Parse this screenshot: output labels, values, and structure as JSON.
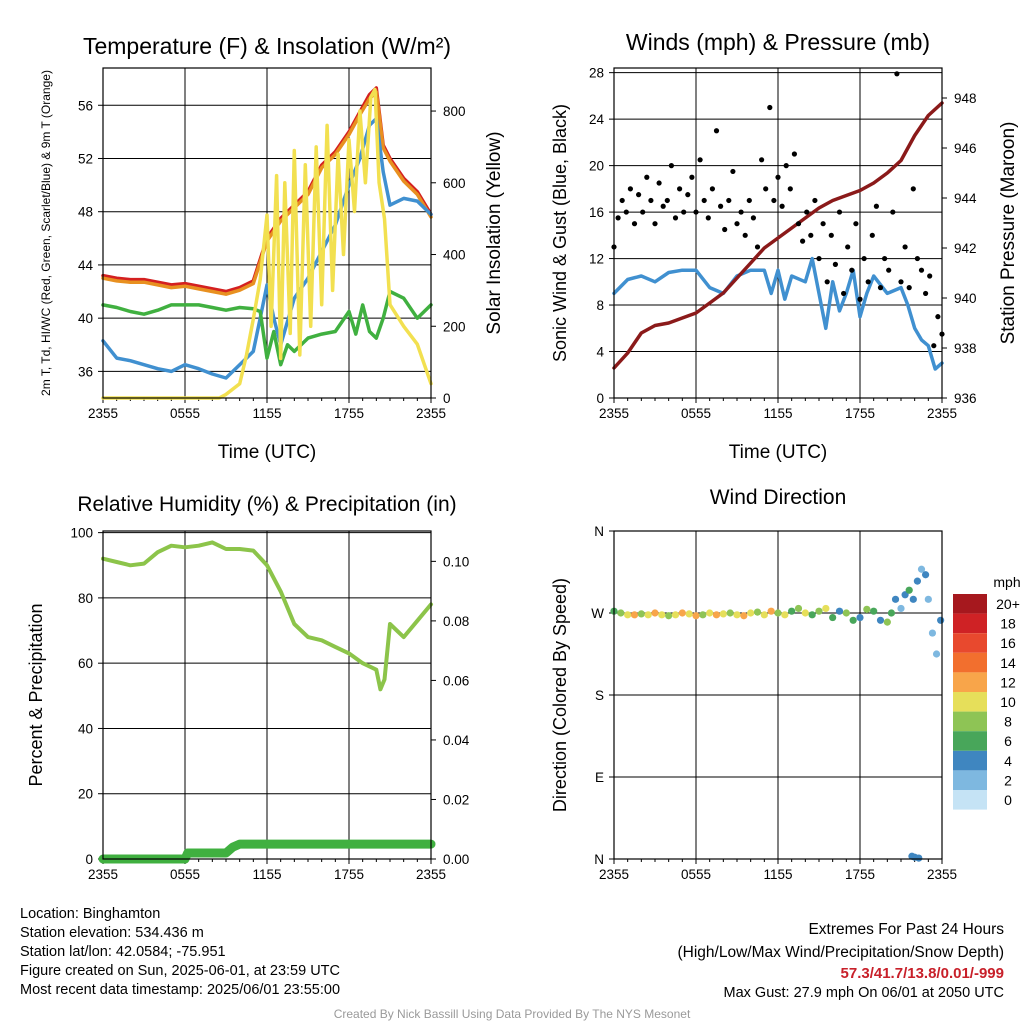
{
  "chart_data": [
    {
      "type": "line",
      "title": "Temperature (F) & Insolation (W/m²)",
      "xlabel": "Time (UTC)",
      "ylabel": "2m T, Td, HI/WC (Red, Green, Scarlet/Blue) & 9m T (Orange)",
      "y2label": "Solar Insolation (Yellow)",
      "x_ticks": [
        "2355",
        "0555",
        "1155",
        "1755",
        "2355"
      ],
      "y_ticks": [
        36,
        40,
        44,
        48,
        52,
        56
      ],
      "y2_ticks": [
        0,
        200,
        400,
        600,
        800
      ],
      "ylim": [
        34,
        58.8
      ],
      "y2lim": [
        0,
        920
      ],
      "xlim": [
        0,
        24
      ],
      "grid": true,
      "series": [
        {
          "color": "#d42020",
          "axis": "left",
          "x": [
            0,
            1,
            2,
            3,
            4,
            5,
            6,
            7,
            8,
            9,
            10,
            11,
            12,
            13,
            14,
            15,
            16,
            17,
            18,
            18.8,
            19.5,
            20,
            20.5,
            21,
            22,
            23,
            24
          ],
          "y": [
            43.2,
            43,
            42.9,
            42.9,
            42.7,
            42.5,
            42.6,
            42.4,
            42.2,
            42,
            42.3,
            42.8,
            46,
            47.5,
            48.5,
            49.5,
            51.5,
            52.5,
            54,
            55.5,
            56.8,
            57.3,
            53,
            52,
            50.5,
            49.5,
            47.8
          ]
        },
        {
          "color": "#e89020",
          "axis": "left",
          "x": [
            0,
            1,
            2,
            3,
            4,
            5,
            6,
            7,
            8,
            9,
            10,
            11,
            12,
            13,
            14,
            15,
            16,
            17,
            18,
            18.8,
            19.5,
            20,
            20.5,
            21,
            22,
            23,
            24
          ],
          "y": [
            43,
            42.8,
            42.7,
            42.7,
            42.5,
            42.3,
            42.4,
            42.2,
            42,
            41.8,
            42.1,
            42.6,
            45.8,
            47.3,
            48.3,
            49.3,
            51.3,
            52.3,
            53.8,
            55.3,
            56.5,
            57,
            52.8,
            51.8,
            50.3,
            49.3,
            47.6
          ]
        },
        {
          "color": "#4090d0",
          "axis": "left",
          "x": [
            0,
            1,
            2,
            3,
            4,
            5,
            6,
            7,
            8,
            9,
            10,
            10.5,
            11,
            11.5,
            12,
            12.5,
            13,
            14,
            15,
            16,
            17,
            18,
            18.8,
            19.5,
            20,
            20.5,
            21,
            22,
            23,
            24
          ],
          "y": [
            38.3,
            37,
            36.8,
            36.5,
            36.2,
            36,
            36.5,
            36.2,
            35.8,
            35.5,
            36.5,
            37,
            37.5,
            40,
            42.5,
            40,
            38,
            41.5,
            43,
            45,
            47,
            50,
            52,
            54.5,
            55,
            51,
            48.5,
            49,
            48.8,
            47.8
          ]
        },
        {
          "color": "#40b040",
          "axis": "left",
          "x": [
            0,
            1,
            2,
            3,
            4,
            5,
            6,
            7,
            8,
            9,
            10,
            11,
            11.5,
            12,
            12.5,
            13,
            13.5,
            14,
            15,
            16,
            17,
            18,
            18.5,
            19,
            19.5,
            20,
            20.5,
            21,
            22,
            23,
            24
          ],
          "y": [
            41,
            40.8,
            40.5,
            40.3,
            40.6,
            41,
            41,
            41,
            40.8,
            40.6,
            40.8,
            40.7,
            40.5,
            37,
            39,
            36.5,
            38,
            37.5,
            38.5,
            38.8,
            39,
            40.5,
            38.8,
            41,
            39,
            38.5,
            40,
            42,
            41.5,
            40,
            41
          ]
        },
        {
          "color": "#f2e050",
          "axis": "right",
          "x": [
            0,
            8.5,
            9,
            10,
            10.5,
            11,
            11.5,
            12,
            12.3,
            12.7,
            13,
            13.3,
            13.7,
            14,
            14.4,
            14.8,
            15.2,
            15.6,
            16,
            16.4,
            16.8,
            17.2,
            17.6,
            18,
            18.4,
            18.8,
            19.2,
            19.6,
            19.9,
            20.2,
            20.6,
            21,
            22,
            23,
            24
          ],
          "y": [
            0,
            0,
            10,
            40,
            120,
            220,
            330,
            510,
            200,
            620,
            110,
            600,
            180,
            690,
            120,
            650,
            200,
            700,
            260,
            760,
            300,
            680,
            400,
            720,
            520,
            800,
            600,
            840,
            860,
            600,
            500,
            260,
            200,
            150,
            40
          ]
        }
      ]
    },
    {
      "type": "line",
      "title": "Winds (mph) & Pressure (mb)",
      "xlabel": "Time (UTC)",
      "ylabel": "Sonic Wind & Gust (Blue, Black)",
      "y2label": "Station Pressure (Maroon)",
      "x_ticks": [
        "2355",
        "0555",
        "1155",
        "1755",
        "2355"
      ],
      "y_ticks": [
        0,
        4,
        8,
        12,
        16,
        20,
        24,
        28
      ],
      "y2_ticks": [
        936,
        938,
        940,
        942,
        944,
        946,
        948
      ],
      "ylim": [
        0,
        28.4
      ],
      "y2lim": [
        936,
        949.2
      ],
      "xlim": [
        0,
        24
      ],
      "grid": true,
      "series": [
        {
          "color": "#4090d0",
          "axis": "left",
          "kind": "line",
          "x": [
            0,
            1,
            2,
            3,
            4,
            5,
            6,
            7,
            8,
            9,
            10,
            11,
            11.5,
            12,
            12.5,
            13,
            14,
            14.5,
            15,
            15.5,
            16,
            16.5,
            17,
            17.5,
            18,
            18.5,
            19,
            20,
            21,
            21.5,
            22,
            22.5,
            23,
            23.5,
            24
          ],
          "y": [
            9,
            10.2,
            10.5,
            10,
            10.8,
            11,
            11,
            9.5,
            9,
            10.5,
            11,
            11,
            9,
            11,
            8.5,
            10.5,
            10,
            12,
            9,
            6,
            10,
            7.5,
            9,
            11,
            7,
            9,
            10.5,
            9,
            9.5,
            8,
            6,
            5,
            4.5,
            2.5,
            3
          ]
        },
        {
          "color": "#8b1a1a",
          "axis": "right",
          "kind": "line",
          "x": [
            0,
            1,
            2,
            3,
            4,
            5,
            6,
            7,
            8,
            9,
            10,
            11,
            12,
            13,
            14,
            15,
            16,
            17,
            18,
            19,
            20,
            21,
            22,
            23,
            24
          ],
          "y": [
            937.2,
            937.8,
            938.6,
            938.9,
            939,
            939.2,
            939.4,
            939.8,
            940.2,
            940.8,
            941.4,
            942,
            942.4,
            942.8,
            943.2,
            943.6,
            943.9,
            944.1,
            944.3,
            944.6,
            945,
            945.5,
            946.5,
            947.3,
            947.8
          ]
        },
        {
          "color": "#000000",
          "axis": "left",
          "kind": "scatter",
          "x": [
            0,
            0.3,
            0.6,
            0.9,
            1.2,
            1.5,
            1.8,
            2.1,
            2.4,
            2.7,
            3,
            3.3,
            3.6,
            3.9,
            4.2,
            4.5,
            4.8,
            5.1,
            5.4,
            5.7,
            6,
            6.3,
            6.6,
            6.9,
            7.2,
            7.5,
            7.8,
            8.1,
            8.4,
            8.7,
            9,
            9.3,
            9.6,
            9.9,
            10.2,
            10.5,
            10.8,
            11.1,
            11.4,
            11.7,
            12,
            12.3,
            12.6,
            12.9,
            13.2,
            13.5,
            13.8,
            14.1,
            14.4,
            14.7,
            15,
            15.3,
            15.6,
            15.9,
            16.2,
            16.5,
            16.8,
            17.1,
            17.4,
            17.7,
            18,
            18.3,
            18.6,
            18.9,
            19.2,
            19.5,
            19.8,
            20.1,
            20.4,
            20.7,
            21,
            21.3,
            21.6,
            21.9,
            22.2,
            22.5,
            22.8,
            23.1,
            23.4,
            23.7,
            24
          ],
          "y": [
            13,
            15.5,
            17,
            16,
            18,
            15,
            17.5,
            16,
            19,
            17,
            15,
            18.5,
            16.5,
            17,
            20,
            15.5,
            18,
            16,
            17.5,
            19,
            16,
            20.5,
            17,
            15.5,
            18,
            23,
            16.5,
            14.5,
            17,
            19.5,
            15,
            16,
            14,
            17,
            15.5,
            13,
            20.5,
            18,
            25,
            17,
            19,
            16.5,
            20,
            18,
            21,
            15,
            13.5,
            16,
            14,
            17,
            12,
            15,
            10,
            14,
            11.5,
            16,
            9,
            13,
            11,
            15,
            8.5,
            12,
            10,
            14,
            16.5,
            9.5,
            12,
            11,
            16,
            27.9,
            10,
            13,
            9.5,
            18,
            12,
            11,
            9,
            10.5,
            4.5,
            7,
            5.5
          ]
        }
      ]
    },
    {
      "type": "line",
      "title": "Relative Humidity (%) & Precipitation (in)",
      "xlabel": "",
      "ylabel": "Percent & Precipitation",
      "x_ticks": [
        "2355",
        "0555",
        "1155",
        "1755",
        "2355"
      ],
      "y_ticks": [
        0,
        20,
        40,
        60,
        80,
        100
      ],
      "y2_ticks": [
        "0.00",
        "0.02",
        "0.04",
        "0.06",
        "0.08",
        "0.10"
      ],
      "ylim": [
        0,
        100.5
      ],
      "y2lim": [
        0,
        0.1102
      ],
      "xlim": [
        0,
        24
      ],
      "grid": true,
      "series": [
        {
          "color": "#8cc44a",
          "axis": "left",
          "x": [
            0,
            1,
            2,
            3,
            4,
            5,
            6,
            7,
            8,
            9,
            10,
            11,
            12,
            13,
            14,
            15,
            16,
            17,
            18,
            19,
            20,
            20.3,
            20.6,
            21,
            22,
            23,
            24
          ],
          "y": [
            92,
            91,
            90,
            90.5,
            94,
            96,
            95.5,
            96,
            97,
            95,
            95,
            94.5,
            90,
            82,
            72,
            68,
            67,
            65,
            63,
            60,
            58,
            52,
            55,
            72,
            68,
            73,
            78
          ]
        },
        {
          "color": "#40b040",
          "axis": "right",
          "x": [
            0,
            2,
            4,
            6,
            6.2,
            8,
            9,
            9.5,
            10,
            12,
            14,
            16,
            18,
            20,
            22,
            24
          ],
          "y": [
            0,
            0,
            0,
            0,
            0.002,
            0.002,
            0.002,
            0.004,
            0.005,
            0.005,
            0.005,
            0.005,
            0.005,
            0.005,
            0.005,
            0.005
          ]
        }
      ]
    },
    {
      "type": "scatter",
      "title": "Wind Direction",
      "xlabel": "",
      "ylabel": "Direction (Colored By Speed)",
      "x_ticks": [
        "2355",
        "0555",
        "1155",
        "1755",
        "2355"
      ],
      "y_ticks": [
        "N",
        "E",
        "S",
        "W",
        "N"
      ],
      "ylim": [
        0,
        360
      ],
      "xlim": [
        0,
        24
      ],
      "grid": true,
      "legend": {
        "title": "mph",
        "labels": [
          "20+",
          "18",
          "16",
          "14",
          "12",
          "10",
          "8",
          "6",
          "4",
          "2",
          "0"
        ]
      },
      "colors": [
        "#a6181e",
        "#cf2225",
        "#e8492e",
        "#f26f2e",
        "#f8a54a",
        "#e6df5a",
        "#8ec455",
        "#48a65a",
        "#3f86c0",
        "#7eb8e0",
        "#c5e3f5"
      ],
      "x": [
        0,
        0.5,
        1,
        1.5,
        2,
        2.5,
        3,
        3.5,
        4,
        4.5,
        5,
        5.5,
        6,
        6.5,
        7,
        7.5,
        8,
        8.5,
        9,
        9.5,
        10,
        10.5,
        11,
        11.5,
        12,
        12.5,
        13,
        13.5,
        14,
        14.5,
        15,
        15.5,
        16,
        16.5,
        17,
        17.5,
        18,
        18.5,
        19,
        19.5,
        20,
        20.3,
        20.6,
        21,
        21.3,
        21.6,
        21.9,
        22.2,
        22.5,
        22.8,
        23,
        23.3,
        23.6,
        23.9,
        21.8,
        22,
        22.3
      ],
      "y": [
        272,
        270,
        268,
        268,
        269,
        268,
        270,
        268,
        267,
        268,
        270,
        269,
        267,
        268,
        270,
        268,
        269,
        270,
        268,
        267,
        270,
        271,
        268,
        272,
        270,
        268,
        272,
        275,
        270,
        268,
        272,
        275,
        265,
        272,
        270,
        262,
        265,
        274,
        272,
        262,
        260,
        270,
        285,
        275,
        290,
        295,
        285,
        305,
        318,
        312,
        285,
        248,
        225,
        262,
        3,
        2,
        1
      ],
      "speed": [
        6,
        8,
        10,
        12,
        8,
        10,
        12,
        10,
        8,
        10,
        12,
        10,
        12,
        8,
        10,
        12,
        10,
        8,
        10,
        12,
        10,
        8,
        10,
        12,
        8,
        10,
        6,
        8,
        10,
        6,
        8,
        10,
        6,
        4,
        8,
        6,
        4,
        8,
        6,
        4,
        8,
        6,
        4,
        2,
        4,
        6,
        4,
        4,
        2,
        4,
        2,
        2,
        2,
        4,
        4,
        4,
        4
      ]
    }
  ],
  "footer_left": [
    "Location: Binghamton",
    "Station elevation: 534.436 m",
    "Station lat/lon: 42.0584; -75.951",
    "Figure created on Sun, 2025-06-01, at 23:59 UTC",
    "Most recent data timestamp: 2025/06/01 23:55:00"
  ],
  "footer_right": {
    "line1": "Extremes For Past 24 Hours",
    "line2": "(High/Low/Max Wind/Precipitation/Snow Depth)",
    "values": "57.3/41.7/13.8/0.01/-999",
    "gust": "Max Gust: 27.9 mph On 06/01 at 2050 UTC"
  },
  "credit": "Created By Nick Bassill Using Data Provided By The NYS Mesonet"
}
